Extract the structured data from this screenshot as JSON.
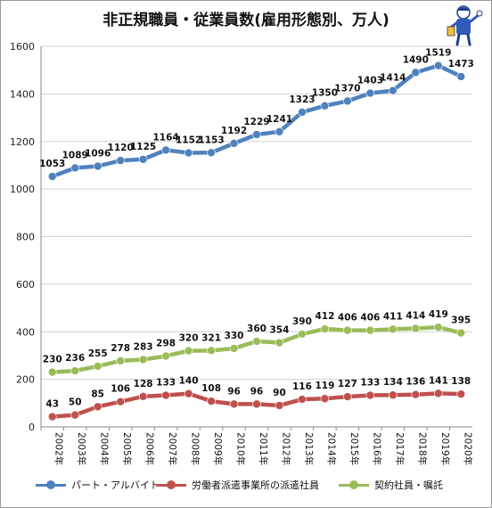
{
  "title": "非正規職員・従業員数(雇用形態別、万人)",
  "chart_data": {
    "type": "line",
    "categories": [
      "2002年",
      "2003年",
      "2004年",
      "2005年",
      "2006年",
      "2007年",
      "2008年",
      "2009年",
      "2010年",
      "2011年",
      "2012年",
      "2013年",
      "2014年",
      "2015年",
      "2016年",
      "2017年",
      "2018年",
      "2019年",
      "2020年"
    ],
    "ylim": [
      0,
      1600
    ],
    "yticks": [
      0,
      200,
      400,
      600,
      800,
      1000,
      1200,
      1400,
      1600
    ],
    "grid": true,
    "legend_position": "bottom",
    "series": [
      {
        "name": "パート・アルバイト",
        "color": "#4f81bd",
        "values": [
          1053,
          1089,
          1096,
          1120,
          1125,
          1164,
          1152,
          1153,
          1192,
          1229,
          1241,
          1323,
          1350,
          1370,
          1403,
          1414,
          1490,
          1519,
          1473
        ]
      },
      {
        "name": "労働者派遣事業所の派遣社員",
        "color": "#c0504d",
        "values": [
          43,
          50,
          85,
          106,
          128,
          133,
          140,
          108,
          96,
          96,
          90,
          116,
          119,
          127,
          133,
          134,
          136,
          141,
          138
        ]
      },
      {
        "name": "契約社員・嘱託",
        "color": "#9bbb59",
        "values": [
          230,
          236,
          255,
          278,
          283,
          298,
          320,
          321,
          330,
          360,
          354,
          390,
          412,
          406,
          406,
          411,
          414,
          419,
          395
        ]
      }
    ]
  }
}
